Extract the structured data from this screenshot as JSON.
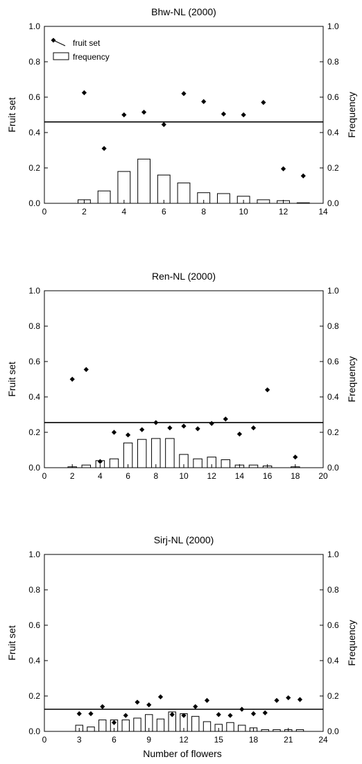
{
  "figure": {
    "xlabel": "Number of flowers",
    "legend": {
      "entries": [
        "fruit set",
        "frequency"
      ],
      "placement": "top-left"
    }
  },
  "chart_data": [
    {
      "type": "bar+scatter",
      "title": "Bhw-NL (2000)",
      "ylabel": "Fruit set",
      "ylabel_right": "Frequency",
      "xlim": [
        0,
        14
      ],
      "ylim": [
        0,
        1.0
      ],
      "y2lim": [
        0,
        1.0
      ],
      "xticks": [
        0,
        2,
        4,
        6,
        8,
        10,
        12,
        14
      ],
      "yticks": [
        0.0,
        0.2,
        0.4,
        0.6,
        0.8,
        1.0
      ],
      "reference_line": 0.46,
      "series": [
        {
          "name": "frequency",
          "kind": "bar",
          "x": [
            2,
            3,
            4,
            5,
            6,
            7,
            8,
            9,
            10,
            11,
            12,
            13
          ],
          "values": [
            0.02,
            0.07,
            0.18,
            0.25,
            0.16,
            0.115,
            0.06,
            0.055,
            0.04,
            0.02,
            0.015,
            0.003
          ]
        },
        {
          "name": "fruit set",
          "kind": "scatter",
          "x": [
            2,
            3,
            4,
            5,
            6,
            7,
            8,
            9,
            10,
            11,
            12,
            13
          ],
          "values": [
            0.625,
            0.31,
            0.5,
            0.515,
            0.445,
            0.62,
            0.575,
            0.505,
            0.5,
            0.57,
            0.195,
            0.155
          ]
        }
      ]
    },
    {
      "type": "bar+scatter",
      "title": "Ren-NL (2000)",
      "ylabel": "Fruit set",
      "ylabel_right": "Frequency",
      "xlim": [
        0,
        20
      ],
      "ylim": [
        0,
        1.0
      ],
      "y2lim": [
        0,
        1.0
      ],
      "xticks": [
        0,
        2,
        4,
        6,
        8,
        10,
        12,
        14,
        16,
        18,
        20
      ],
      "yticks": [
        0.0,
        0.2,
        0.4,
        0.6,
        0.8,
        1.0
      ],
      "reference_line": 0.255,
      "series": [
        {
          "name": "frequency",
          "kind": "bar",
          "x": [
            2,
            3,
            4,
            5,
            6,
            7,
            8,
            9,
            10,
            11,
            12,
            13,
            14,
            15,
            16,
            18
          ],
          "values": [
            0.005,
            0.015,
            0.04,
            0.05,
            0.14,
            0.16,
            0.165,
            0.165,
            0.075,
            0.05,
            0.06,
            0.045,
            0.015,
            0.015,
            0.01,
            0.005
          ]
        },
        {
          "name": "fruit set",
          "kind": "scatter",
          "x": [
            2,
            3,
            4,
            5,
            6,
            7,
            8,
            9,
            10,
            11,
            12,
            13,
            14,
            15,
            16,
            18
          ],
          "values": [
            0.5,
            0.555,
            0.035,
            0.2,
            0.185,
            0.215,
            0.255,
            0.225,
            0.235,
            0.22,
            0.25,
            0.275,
            0.19,
            0.225,
            0.44,
            0.06
          ]
        }
      ]
    },
    {
      "type": "bar+scatter",
      "title": "Sirj-NL (2000)",
      "ylabel": "Fruit set",
      "ylabel_right": "Frequency",
      "xlabel": "Number of flowers",
      "xlim": [
        0,
        24
      ],
      "ylim": [
        0,
        1.0
      ],
      "y2lim": [
        0,
        1.0
      ],
      "xticks": [
        0,
        3,
        6,
        9,
        12,
        15,
        18,
        21,
        24
      ],
      "yticks": [
        0.0,
        0.2,
        0.4,
        0.6,
        0.8,
        1.0
      ],
      "reference_line": 0.125,
      "series": [
        {
          "name": "frequency",
          "kind": "bar",
          "x": [
            3,
            4,
            5,
            6,
            7,
            8,
            9,
            10,
            11,
            12,
            13,
            14,
            15,
            16,
            17,
            18,
            19,
            20,
            21,
            22
          ],
          "values": [
            0.035,
            0.025,
            0.065,
            0.065,
            0.065,
            0.075,
            0.095,
            0.07,
            0.11,
            0.1,
            0.085,
            0.055,
            0.04,
            0.05,
            0.035,
            0.02,
            0.01,
            0.01,
            0.01,
            0.01
          ]
        },
        {
          "name": "fruit set",
          "kind": "scatter",
          "x": [
            3,
            4,
            5,
            6,
            7,
            8,
            9,
            10,
            11,
            12,
            13,
            14,
            15,
            16,
            17,
            18,
            19,
            20,
            21,
            22
          ],
          "values": [
            0.1,
            0.1,
            0.14,
            0.05,
            0.09,
            0.165,
            0.15,
            0.195,
            0.095,
            0.09,
            0.14,
            0.175,
            0.095,
            0.09,
            0.125,
            0.1,
            0.105,
            0.175,
            0.19,
            0.18
          ]
        }
      ]
    }
  ]
}
